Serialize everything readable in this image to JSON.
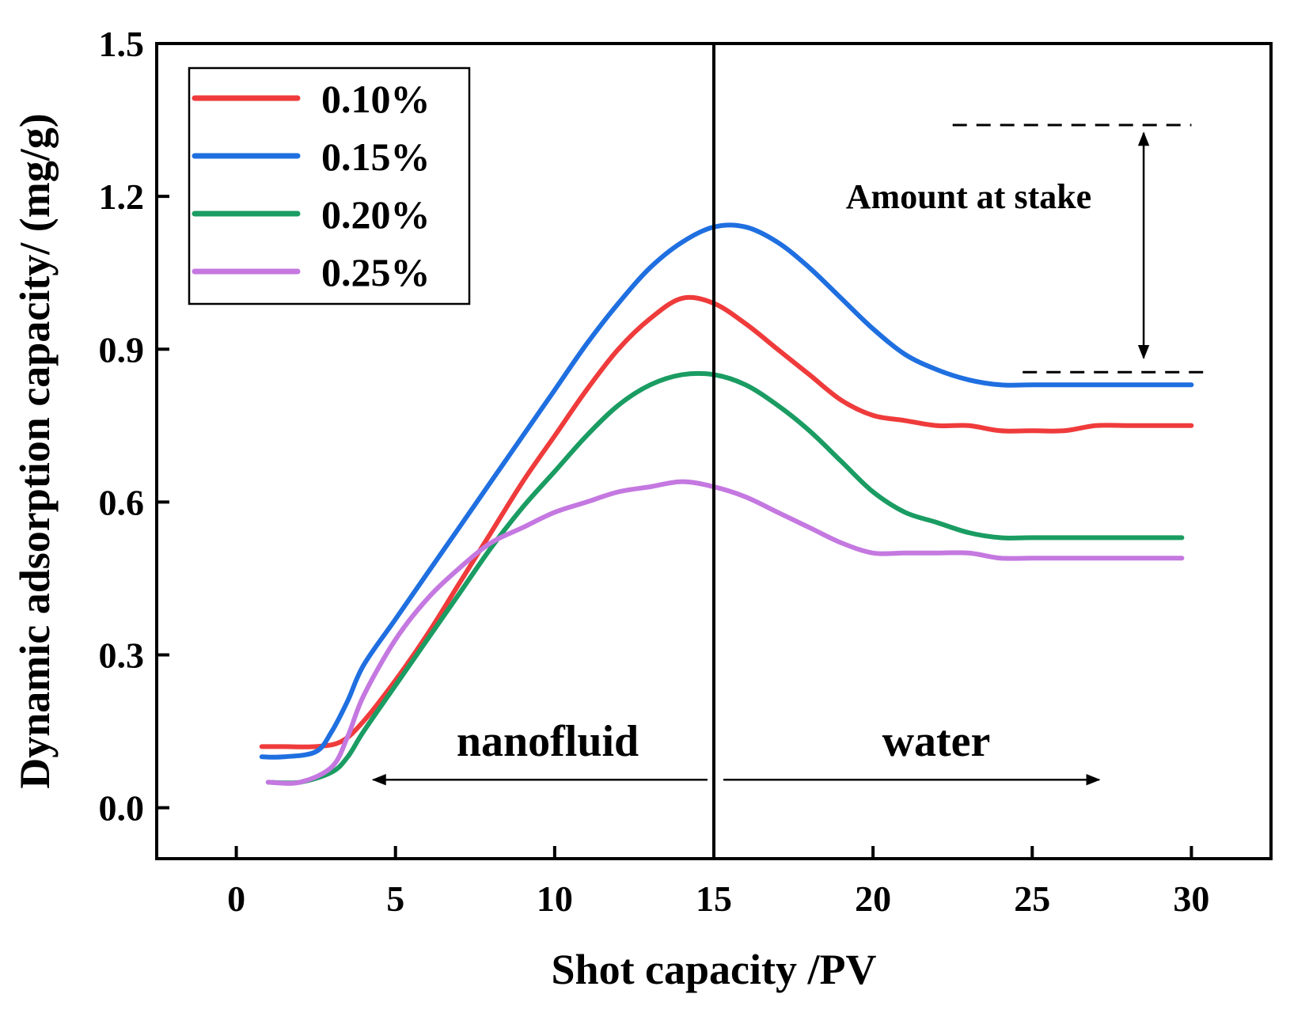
{
  "chart_data": {
    "type": "line",
    "title": "",
    "xlabel": "Shot capacity /PV",
    "ylabel": "Dynamic adsorption capacity/ (mg/g)",
    "xlim": [
      -2.5,
      32.5
    ],
    "ylim": [
      -0.1,
      1.5
    ],
    "xticks": [
      0,
      5,
      10,
      15,
      20,
      25,
      30
    ],
    "yticks": [
      0.0,
      0.3,
      0.6,
      0.9,
      1.2,
      1.5
    ],
    "xtick_labels": [
      "0",
      "5",
      "10",
      "15",
      "20",
      "25",
      "30"
    ],
    "ytick_labels": [
      "0.0",
      "0.3",
      "0.6",
      "0.9",
      "1.2",
      "1.5"
    ],
    "grid": false,
    "legend_position": "top-left",
    "series": [
      {
        "name": "0.10%",
        "color": "#ef3b3b",
        "x": [
          0.8,
          1.5,
          2.5,
          3.3,
          4.0,
          5.0,
          6.0,
          7.0,
          8.0,
          9.0,
          10.0,
          11.0,
          12.0,
          13.0,
          14.0,
          15.0,
          16.0,
          17.0,
          18.0,
          19.0,
          20.0,
          21.0,
          22.0,
          23.0,
          24.0,
          25.0,
          26.0,
          27.0,
          28.0,
          29.0,
          30.0
        ],
        "y": [
          0.12,
          0.12,
          0.12,
          0.13,
          0.17,
          0.25,
          0.34,
          0.44,
          0.54,
          0.64,
          0.73,
          0.82,
          0.9,
          0.96,
          1.0,
          0.99,
          0.95,
          0.9,
          0.85,
          0.8,
          0.77,
          0.76,
          0.75,
          0.75,
          0.74,
          0.74,
          0.74,
          0.75,
          0.75,
          0.75,
          0.75
        ]
      },
      {
        "name": "0.15%",
        "color": "#1f6fe0",
        "x": [
          0.8,
          1.5,
          2.5,
          3.0,
          3.5,
          4.0,
          5.0,
          6.0,
          7.0,
          8.0,
          9.0,
          10.0,
          11.0,
          12.0,
          13.0,
          14.0,
          15.0,
          16.0,
          17.0,
          18.0,
          19.0,
          20.0,
          21.0,
          22.0,
          23.0,
          24.0,
          25.0,
          26.0,
          27.0,
          28.0,
          29.0,
          30.0
        ],
        "y": [
          0.1,
          0.1,
          0.11,
          0.15,
          0.21,
          0.28,
          0.37,
          0.46,
          0.55,
          0.64,
          0.73,
          0.82,
          0.91,
          0.99,
          1.06,
          1.11,
          1.14,
          1.14,
          1.11,
          1.06,
          1.0,
          0.94,
          0.89,
          0.86,
          0.84,
          0.83,
          0.83,
          0.83,
          0.83,
          0.83,
          0.83,
          0.83
        ]
      },
      {
        "name": "0.20%",
        "color": "#1a9c62",
        "x": [
          1.0,
          2.0,
          3.0,
          3.5,
          4.0,
          5.0,
          6.0,
          7.0,
          8.0,
          9.0,
          10.0,
          11.0,
          12.0,
          13.0,
          14.0,
          15.0,
          16.0,
          17.0,
          18.0,
          19.0,
          20.0,
          21.0,
          22.0,
          23.0,
          24.0,
          25.0,
          26.0,
          27.0,
          28.0,
          29.0,
          29.7
        ],
        "y": [
          0.05,
          0.05,
          0.07,
          0.1,
          0.15,
          0.24,
          0.33,
          0.42,
          0.51,
          0.59,
          0.66,
          0.73,
          0.79,
          0.83,
          0.85,
          0.85,
          0.83,
          0.79,
          0.74,
          0.68,
          0.62,
          0.58,
          0.56,
          0.54,
          0.53,
          0.53,
          0.53,
          0.53,
          0.53,
          0.53,
          0.53
        ]
      },
      {
        "name": "0.25%",
        "color": "#c478e0",
        "x": [
          1.0,
          2.0,
          3.0,
          3.5,
          4.0,
          5.0,
          6.0,
          7.0,
          8.0,
          9.0,
          10.0,
          11.0,
          12.0,
          13.0,
          14.0,
          15.0,
          16.0,
          17.0,
          18.0,
          19.0,
          20.0,
          21.0,
          22.0,
          23.0,
          24.0,
          25.0,
          26.0,
          27.0,
          28.0,
          29.0,
          29.7
        ],
        "y": [
          0.05,
          0.05,
          0.08,
          0.14,
          0.22,
          0.33,
          0.41,
          0.47,
          0.52,
          0.55,
          0.58,
          0.6,
          0.62,
          0.63,
          0.64,
          0.63,
          0.61,
          0.58,
          0.55,
          0.52,
          0.5,
          0.5,
          0.5,
          0.5,
          0.49,
          0.49,
          0.49,
          0.49,
          0.49,
          0.49,
          0.49
        ]
      }
    ],
    "reference_lines": {
      "vertical_x": 15,
      "dashed_upper_y": 1.34,
      "dashed_lower_y": 0.855,
      "dashed_upper_x": [
        22.5,
        30.0
      ],
      "dashed_lower_x": [
        24.7,
        30.5
      ],
      "stake_arrow_x": 28.5
    },
    "annotations": {
      "left_region": "nanofluid",
      "right_region": "water",
      "stake_label": "Amount at stake",
      "left_arrow_x": [
        4.3,
        14.8
      ],
      "right_arrow_x": [
        15.3,
        27.1
      ],
      "arrow_y": 0.055
    }
  }
}
